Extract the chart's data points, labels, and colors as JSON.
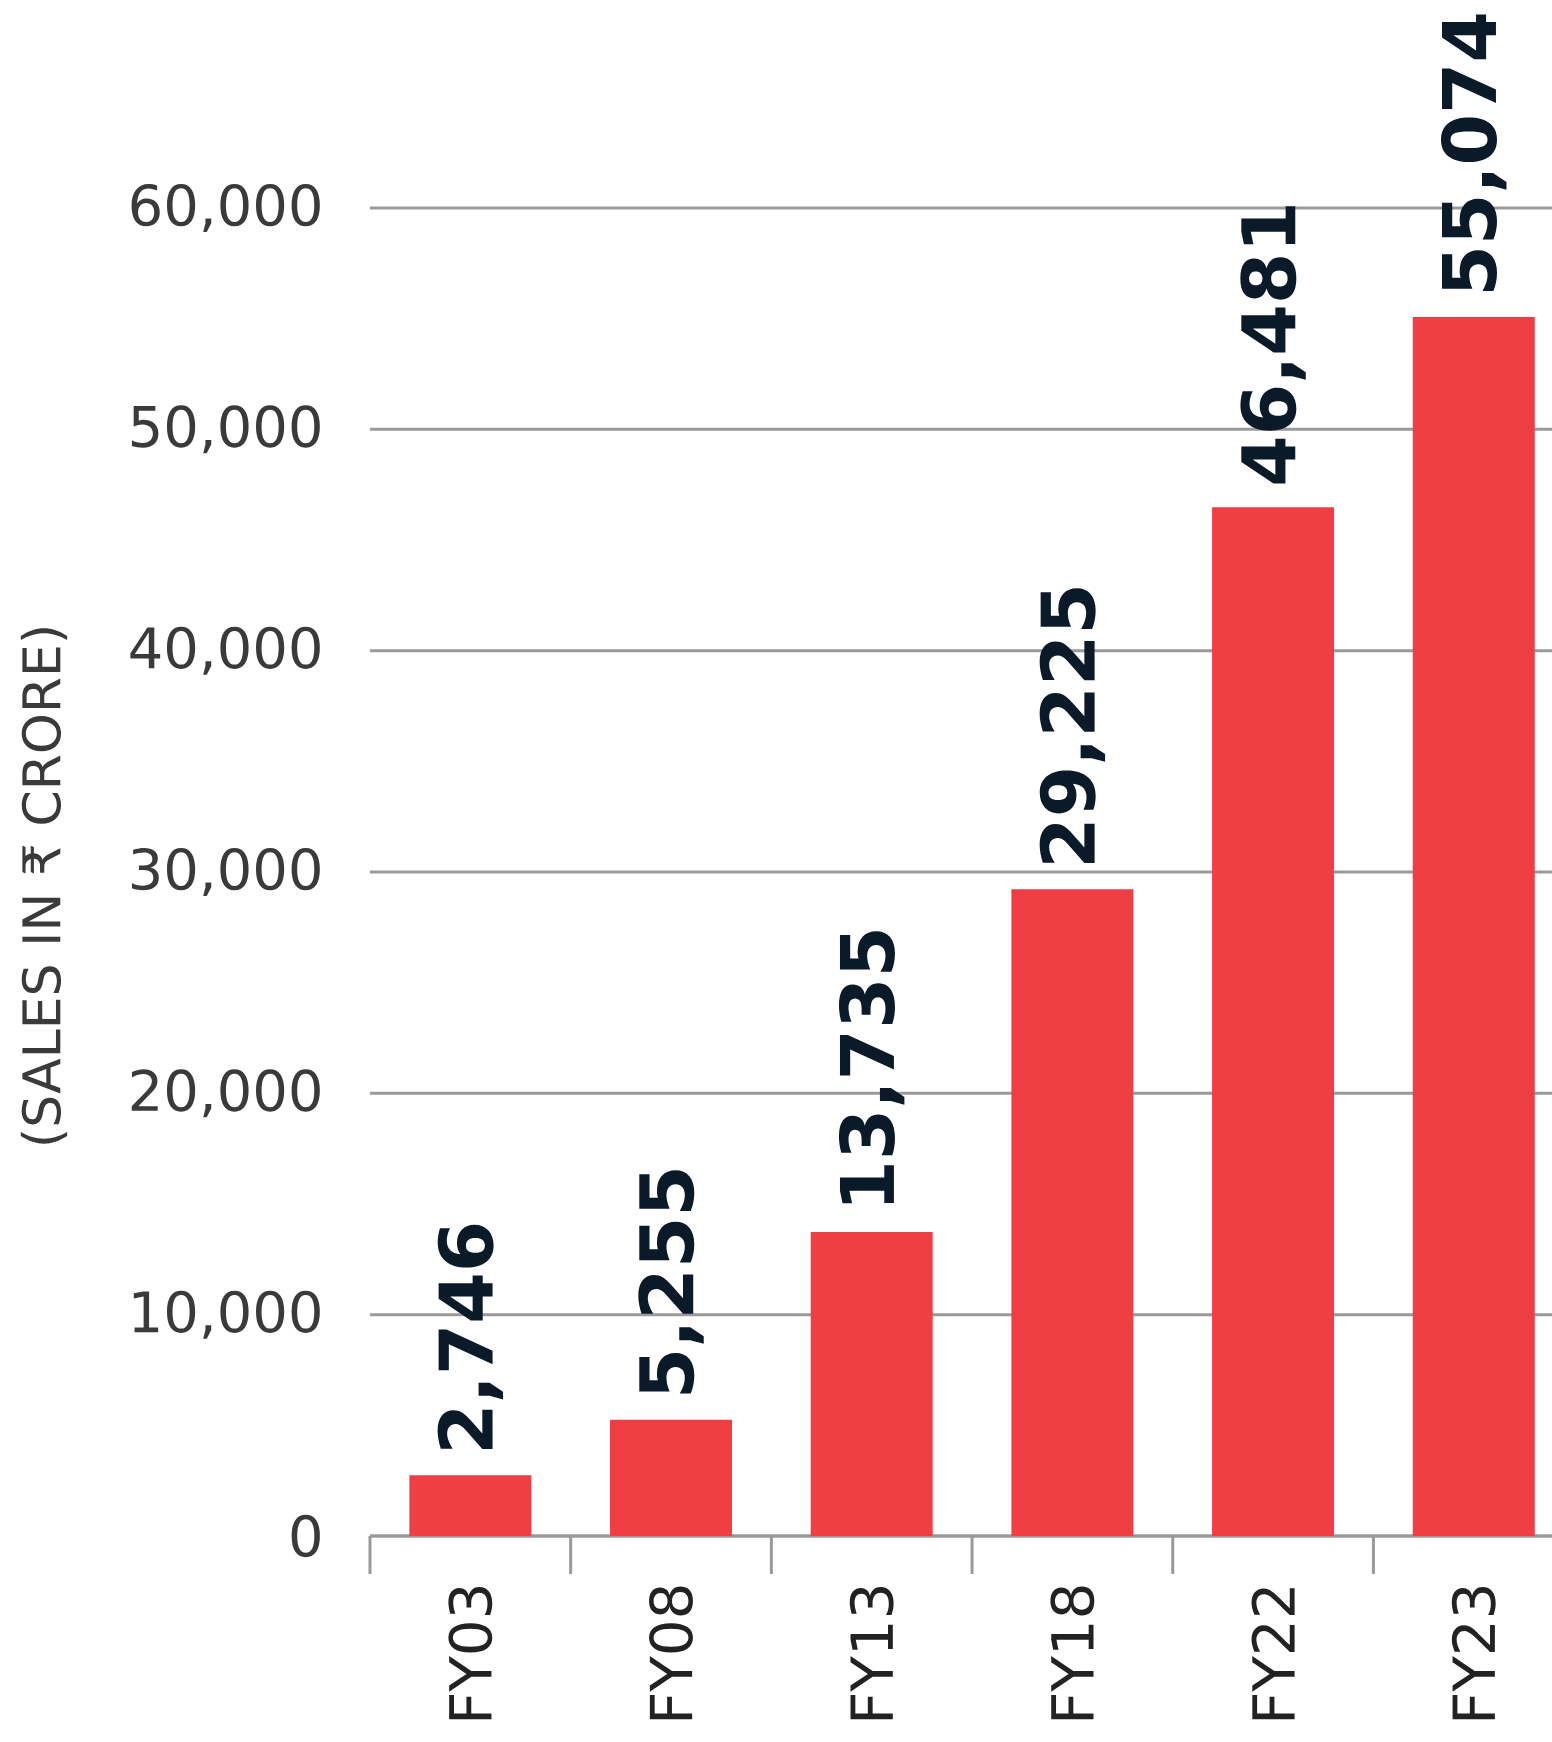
{
  "chart_data": {
    "type": "bar",
    "ylabel": "(SALES IN ₹ CRORE)",
    "categories": [
      "FY03",
      "FY08",
      "FY13",
      "FY18",
      "FY22",
      "FY23"
    ],
    "values": [
      2746,
      5255,
      13735,
      29225,
      46481,
      55074
    ],
    "value_labels": [
      "2,746",
      "5,255",
      "13,735",
      "29,225",
      "46,481",
      "55,074"
    ],
    "color": "#ef3e44",
    "ylim": [
      0,
      60000
    ],
    "yticks": [
      0,
      {
        "value": 10000,
        "label": "10,000"
      },
      {
        "value": 20000,
        "label": "20,000"
      },
      {
        "value": 30000,
        "label": "30,000"
      },
      {
        "value": 40000,
        "label": "40,000"
      },
      {
        "value": 50000,
        "label": "50,000"
      },
      {
        "value": 60000,
        "label": "60,000"
      }
    ],
    "grid": "y"
  }
}
